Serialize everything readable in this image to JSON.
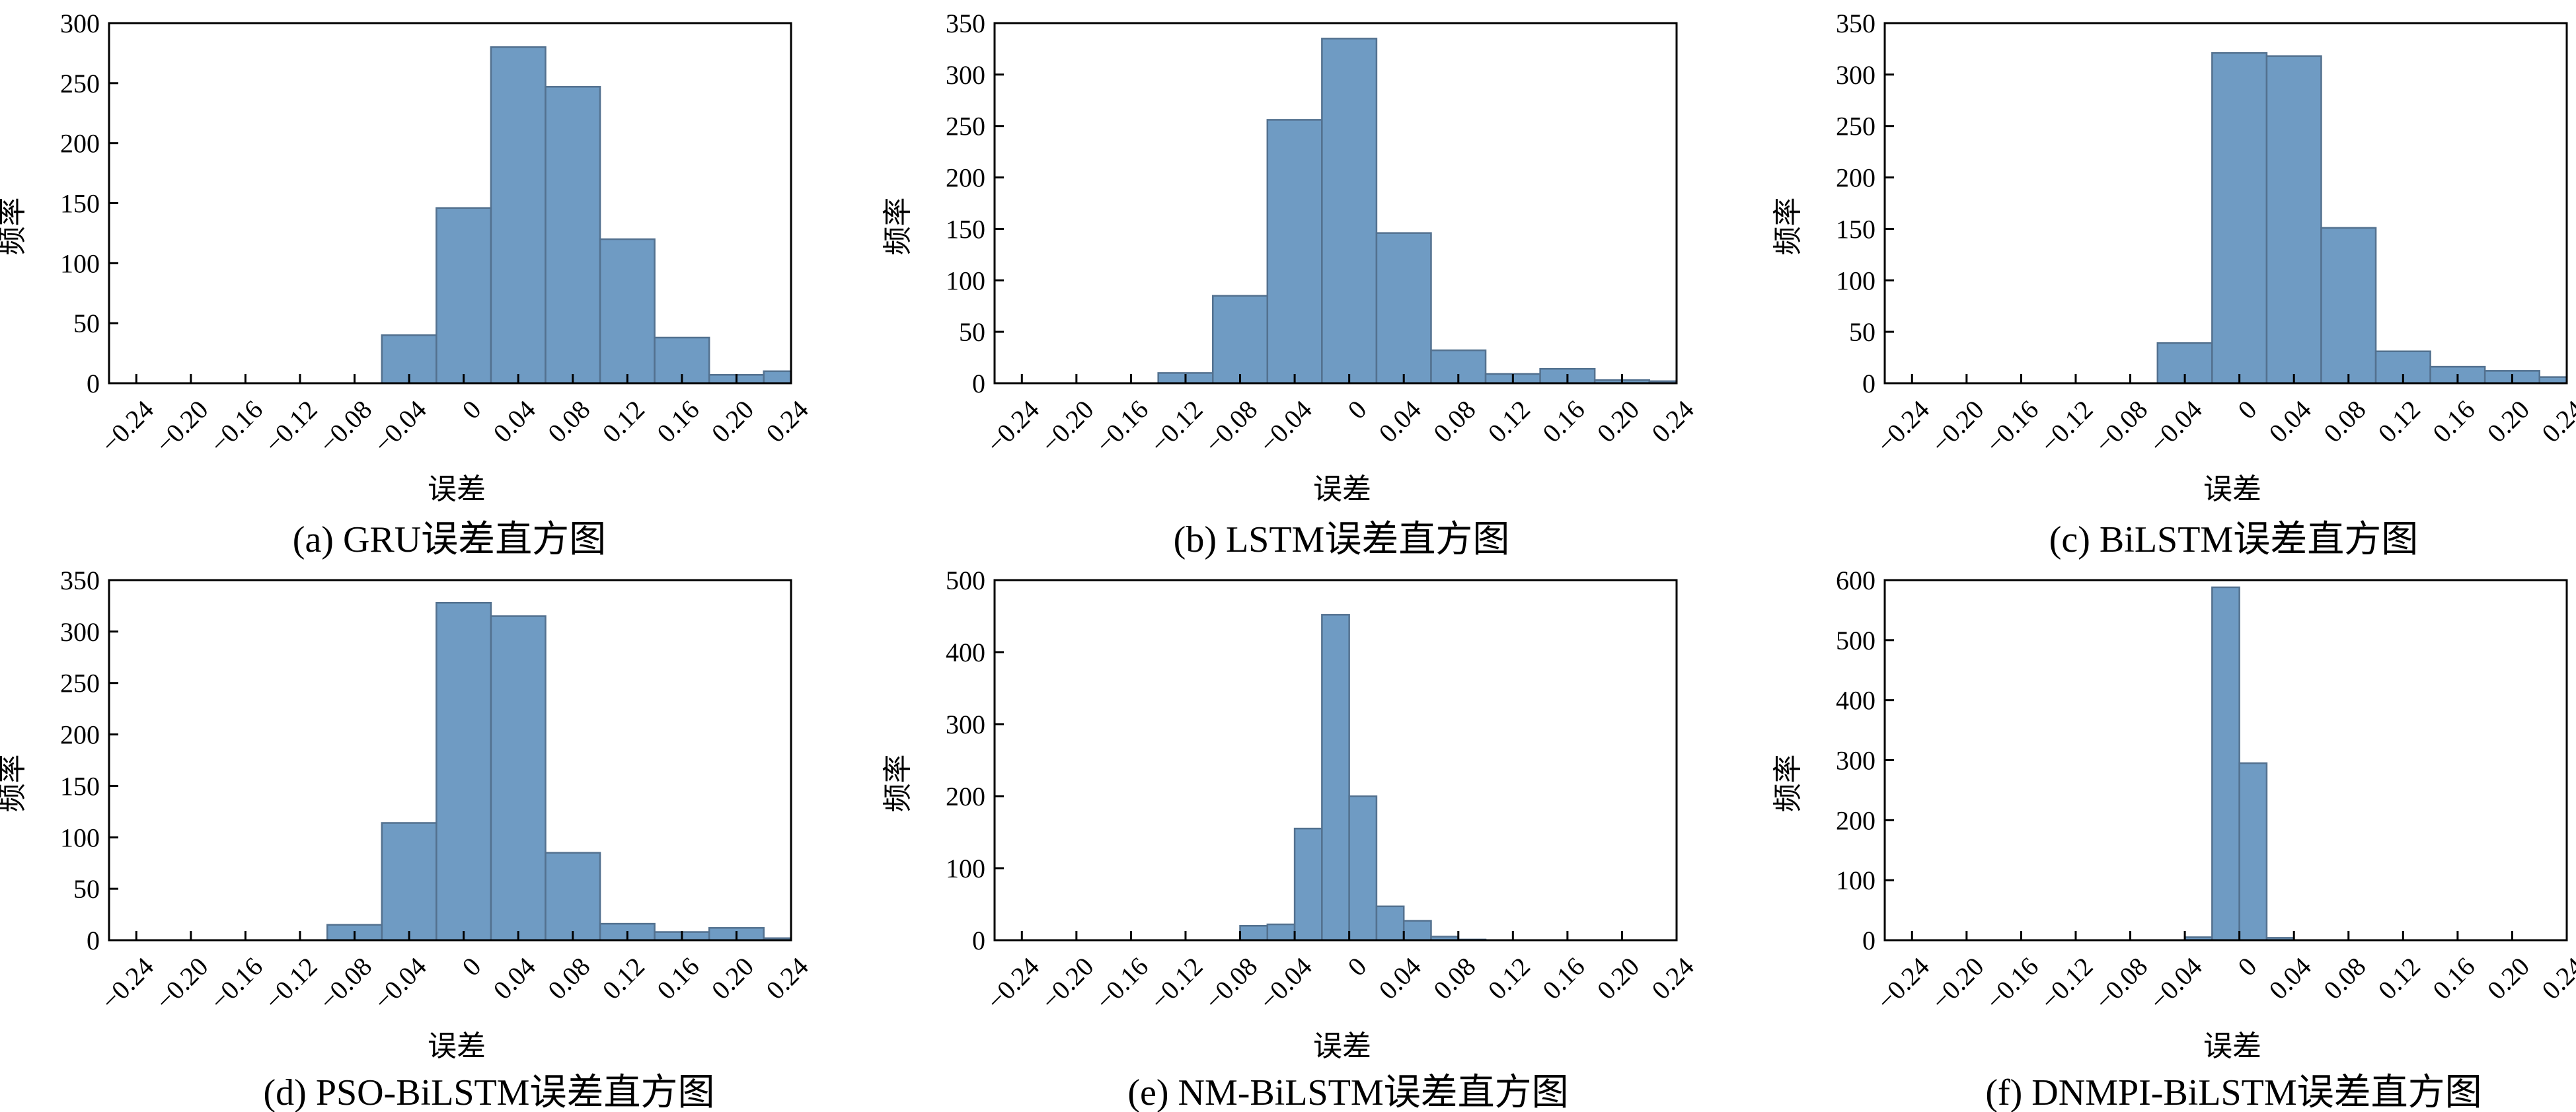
{
  "figure": {
    "panel_count": 6
  },
  "colors": {
    "bar_fill": "#6f9bc3",
    "bar_edge": "#53718f",
    "axis": "#000000",
    "background": "#ffffff"
  },
  "chart_data": [
    {
      "id": "a",
      "type": "bar",
      "caption": "(a) GRU误差直方图",
      "xlabel": "误差",
      "ylabel": "频率",
      "xlim": [
        -0.26,
        0.24
      ],
      "ylim": [
        0,
        300
      ],
      "yticks": [
        0,
        50,
        100,
        150,
        200,
        250,
        300
      ],
      "xtick_labels": [
        "−0.24",
        "−0.20",
        "−0.16",
        "−0.12",
        "−0.08",
        "−0.04",
        "0",
        "0.04",
        "0.08",
        "0.12",
        "0.16",
        "0.20",
        "0.24"
      ],
      "bin_edges": [
        -0.26,
        -0.22,
        -0.18,
        -0.14,
        -0.1,
        -0.06,
        -0.02,
        0.02,
        0.06,
        0.1,
        0.14,
        0.18,
        0.22,
        0.26
      ],
      "values": [
        0,
        0,
        0,
        0,
        0,
        40,
        146,
        280,
        247,
        120,
        38,
        7,
        10
      ]
    },
    {
      "id": "b",
      "type": "bar",
      "caption": "(b) LSTM误差直方图",
      "xlabel": "误差",
      "ylabel": "频率",
      "xlim": [
        -0.26,
        0.24
      ],
      "ylim": [
        0,
        350
      ],
      "yticks": [
        0,
        50,
        100,
        150,
        200,
        250,
        300,
        350
      ],
      "xtick_labels": [
        "−0.24",
        "−0.20",
        "−0.16",
        "−0.12",
        "−0.08",
        "−0.04",
        "0",
        "0.04",
        "0.08",
        "0.12",
        "0.16",
        "0.20",
        "0.24"
      ],
      "bin_edges": [
        -0.26,
        -0.22,
        -0.18,
        -0.14,
        -0.1,
        -0.06,
        -0.02,
        0.02,
        0.06,
        0.1,
        0.14,
        0.18,
        0.22,
        0.26
      ],
      "values": [
        0,
        0,
        0,
        10,
        85,
        256,
        335,
        146,
        32,
        9,
        14,
        3,
        2
      ]
    },
    {
      "id": "c",
      "type": "bar",
      "caption": "(c) BiLSTM误差直方图",
      "xlabel": "误差",
      "ylabel": "频率",
      "xlim": [
        -0.26,
        0.24
      ],
      "ylim": [
        0,
        350
      ],
      "yticks": [
        0,
        50,
        100,
        150,
        200,
        250,
        300,
        350
      ],
      "xtick_labels": [
        "−0.24",
        "−0.20",
        "−0.16",
        "−0.12",
        "−0.08",
        "−0.04",
        "0",
        "0.04",
        "0.08",
        "0.12",
        "0.16",
        "0.20",
        "0.24"
      ],
      "bin_edges": [
        -0.26,
        -0.22,
        -0.18,
        -0.14,
        -0.1,
        -0.06,
        -0.02,
        0.02,
        0.06,
        0.1,
        0.14,
        0.18,
        0.22,
        0.26
      ],
      "values": [
        0,
        0,
        0,
        0,
        0,
        39,
        321,
        318,
        151,
        31,
        16,
        12,
        6
      ]
    },
    {
      "id": "d",
      "type": "bar",
      "caption": "(d) PSO-BiLSTM误差直方图",
      "xlabel": "误差",
      "ylabel": "频率",
      "xlim": [
        -0.26,
        0.24
      ],
      "ylim": [
        0,
        350
      ],
      "yticks": [
        0,
        50,
        100,
        150,
        200,
        250,
        300,
        350
      ],
      "xtick_labels": [
        "−0.24",
        "−0.20",
        "−0.16",
        "−0.12",
        "−0.08",
        "−0.04",
        "0",
        "0.04",
        "0.08",
        "0.12",
        "0.16",
        "0.20",
        "0.24"
      ],
      "bin_edges": [
        -0.26,
        -0.22,
        -0.18,
        -0.14,
        -0.1,
        -0.06,
        -0.02,
        0.02,
        0.06,
        0.1,
        0.14,
        0.18,
        0.22,
        0.26
      ],
      "values": [
        0,
        0,
        0,
        0,
        15,
        114,
        328,
        315,
        85,
        16,
        8,
        12,
        2
      ]
    },
    {
      "id": "e",
      "type": "bar",
      "caption": "(e) NM-BiLSTM误差直方图",
      "xlabel": "误差",
      "ylabel": "频率",
      "xlim": [
        -0.26,
        0.24
      ],
      "ylim": [
        0,
        500
      ],
      "yticks": [
        0,
        100,
        200,
        300,
        400,
        500
      ],
      "xtick_labels": [
        "−0.24",
        "−0.20",
        "−0.16",
        "−0.12",
        "−0.08",
        "−0.04",
        "0",
        "0.04",
        "0.08",
        "0.12",
        "0.16",
        "0.20",
        "0.24"
      ],
      "bin_edges": [
        -0.26,
        -0.22,
        -0.18,
        -0.14,
        -0.1,
        -0.08,
        -0.06,
        -0.04,
        -0.02,
        0,
        0.02,
        0.04,
        0.06,
        0.08,
        0.1,
        0.12,
        0.14,
        0.16,
        0.18,
        0.2,
        0.22,
        0.26
      ],
      "values": [
        0,
        0,
        0,
        0,
        0,
        20,
        22,
        155,
        452,
        200,
        47,
        27,
        5,
        1,
        0,
        0,
        0,
        0,
        0,
        0,
        0
      ]
    },
    {
      "id": "f",
      "type": "bar",
      "caption": "(f) DNMPI-BiLSTM误差直方图",
      "xlabel": "误差",
      "ylabel": "频率",
      "xlim": [
        -0.26,
        0.24
      ],
      "ylim": [
        0,
        600
      ],
      "yticks": [
        0,
        100,
        200,
        300,
        400,
        500,
        600
      ],
      "xtick_labels": [
        "−0.24",
        "−0.20",
        "−0.16",
        "−0.12",
        "−0.08",
        "−0.04",
        "0",
        "0.04",
        "0.08",
        "0.12",
        "0.16",
        "0.20",
        "0.24"
      ],
      "bin_edges": [
        -0.26,
        -0.22,
        -0.18,
        -0.14,
        -0.1,
        -0.06,
        -0.04,
        -0.02,
        0,
        0.02,
        0.04,
        0.06,
        0.1,
        0.14,
        0.18,
        0.22,
        0.26
      ],
      "values": [
        0,
        0,
        0,
        0,
        0,
        0,
        5,
        588,
        295,
        4,
        0,
        0,
        0,
        0,
        0,
        0
      ]
    }
  ]
}
